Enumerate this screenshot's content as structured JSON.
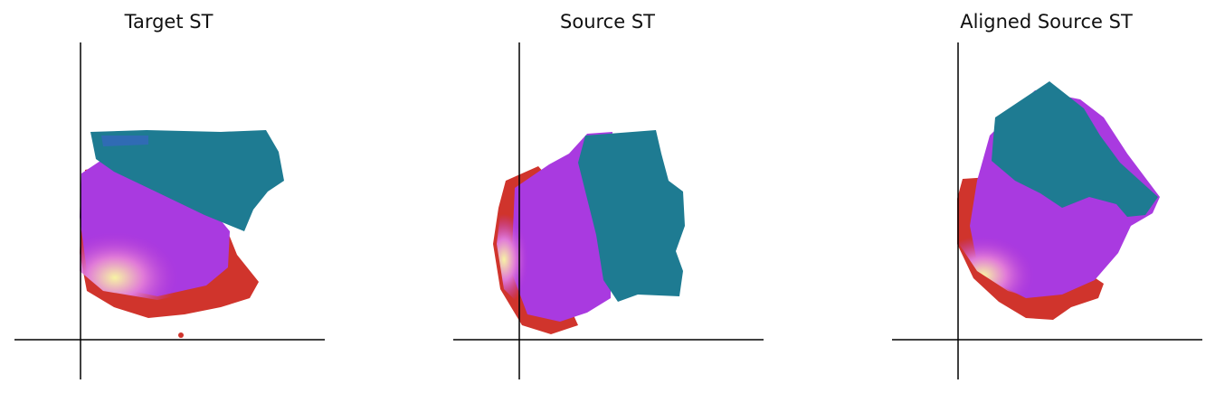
{
  "figure": {
    "panels": [
      {
        "title": "Target ST"
      },
      {
        "title": "Source ST"
      },
      {
        "title": "Aligned Source ST"
      }
    ]
  },
  "colors": {
    "teal": "#1f7a8c",
    "violet": "#8a2be2",
    "magenta": "#c23bd4",
    "pink": "#e07ad8",
    "red": "#d0342c",
    "pale_yellow": "#f5f0a0",
    "axis": "#000000"
  },
  "chart_data": [
    {
      "type": "scatter",
      "title": "Target ST",
      "description_regions": [
        "teal-blue upper region",
        "violet/magenta middle",
        "yellow-white lower-left band",
        "red outer rim"
      ]
    },
    {
      "type": "scatter",
      "title": "Source ST",
      "description_regions": [
        "teal-blue right region",
        "violet/magenta middle",
        "yellow-white left band",
        "red outer rim"
      ]
    },
    {
      "type": "scatter",
      "title": "Aligned Source ST",
      "description_regions": [
        "teal-blue upper region",
        "violet/magenta middle",
        "yellow-white lower-left band",
        "red outer rim"
      ]
    }
  ]
}
